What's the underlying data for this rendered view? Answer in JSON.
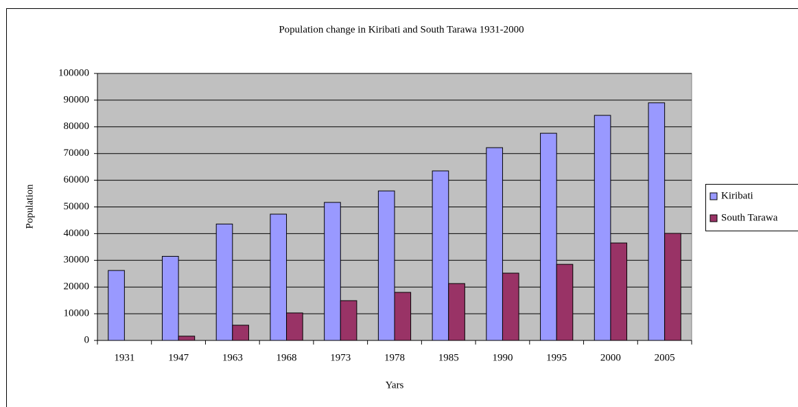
{
  "chart_data": {
    "type": "bar",
    "title": "Population change in Kiribati and South Tarawa 1931-2000",
    "x_label": "Yars",
    "y_label": "Population",
    "categories": [
      "1931",
      "1947",
      "1963",
      "1968",
      "1973",
      "1978",
      "1985",
      "1990",
      "1995",
      "2000",
      "2005"
    ],
    "series": [
      {
        "name": "Kiribati",
        "color": "#9999ff",
        "values": [
          26200,
          31500,
          43600,
          47300,
          51700,
          56000,
          63500,
          72200,
          77600,
          84300,
          89000
        ]
      },
      {
        "name": "South Tarawa",
        "color": "#993366",
        "values": [
          null,
          1600,
          5700,
          10300,
          14900,
          18000,
          21300,
          25200,
          28500,
          36500,
          40100
        ]
      }
    ],
    "ylim": [
      0,
      100000
    ],
    "yticks": [
      0,
      10000,
      20000,
      30000,
      40000,
      50000,
      60000,
      70000,
      80000,
      90000,
      100000
    ],
    "grid": true,
    "legend": "right"
  }
}
